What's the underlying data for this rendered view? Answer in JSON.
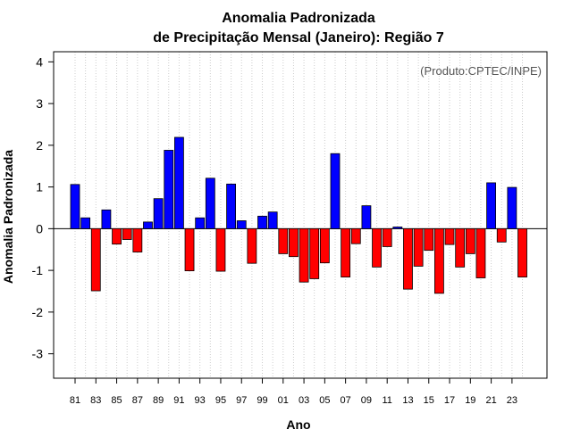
{
  "chart_data": {
    "type": "bar",
    "title": "Anomalia Padronizada",
    "subtitle": "de Precipitação Mensal (Janeiro): Região 7",
    "annotation": "(Produto:CPTEC/INPE)",
    "xlabel": "Ano",
    "ylabel": "Anomalia Padronizada",
    "ylim": [
      -3.5,
      4.2
    ],
    "yticks": [
      -3,
      -2,
      -1,
      0,
      1,
      2,
      3,
      4
    ],
    "grid": "vertical dotted",
    "colors": {
      "positive": "#0000ff",
      "negative": "#ff0000",
      "grid": "#cccccc"
    },
    "categories": [
      "81",
      "82",
      "83",
      "84",
      "85",
      "86",
      "87",
      "88",
      "89",
      "90",
      "91",
      "92",
      "93",
      "94",
      "95",
      "96",
      "97",
      "98",
      "99",
      "00",
      "01",
      "02",
      "03",
      "04",
      "05",
      "06",
      "07",
      "08",
      "09",
      "10",
      "11",
      "12",
      "13",
      "14",
      "15",
      "16",
      "17",
      "18",
      "19",
      "20",
      "21",
      "22",
      "23",
      "24"
    ],
    "tick_labels": [
      "81",
      "83",
      "85",
      "87",
      "89",
      "91",
      "93",
      "95",
      "97",
      "99",
      "01",
      "03",
      "05",
      "07",
      "09",
      "11",
      "13",
      "15",
      "17",
      "19",
      "21",
      "23"
    ],
    "values": [
      1.06,
      0.26,
      -1.49,
      0.45,
      -0.37,
      -0.26,
      -0.56,
      0.16,
      0.72,
      1.88,
      2.19,
      -1.01,
      0.26,
      1.21,
      -1.02,
      1.07,
      0.19,
      -0.83,
      0.3,
      0.4,
      -0.6,
      -0.67,
      -1.28,
      -1.2,
      -0.82,
      1.8,
      -1.16,
      -0.36,
      0.55,
      -0.92,
      -0.43,
      0.04,
      -1.45,
      -0.9,
      -0.52,
      -1.55,
      -0.38,
      -0.92,
      -0.6,
      -1.18,
      1.1,
      -0.32,
      0.99,
      -1.16
    ]
  }
}
